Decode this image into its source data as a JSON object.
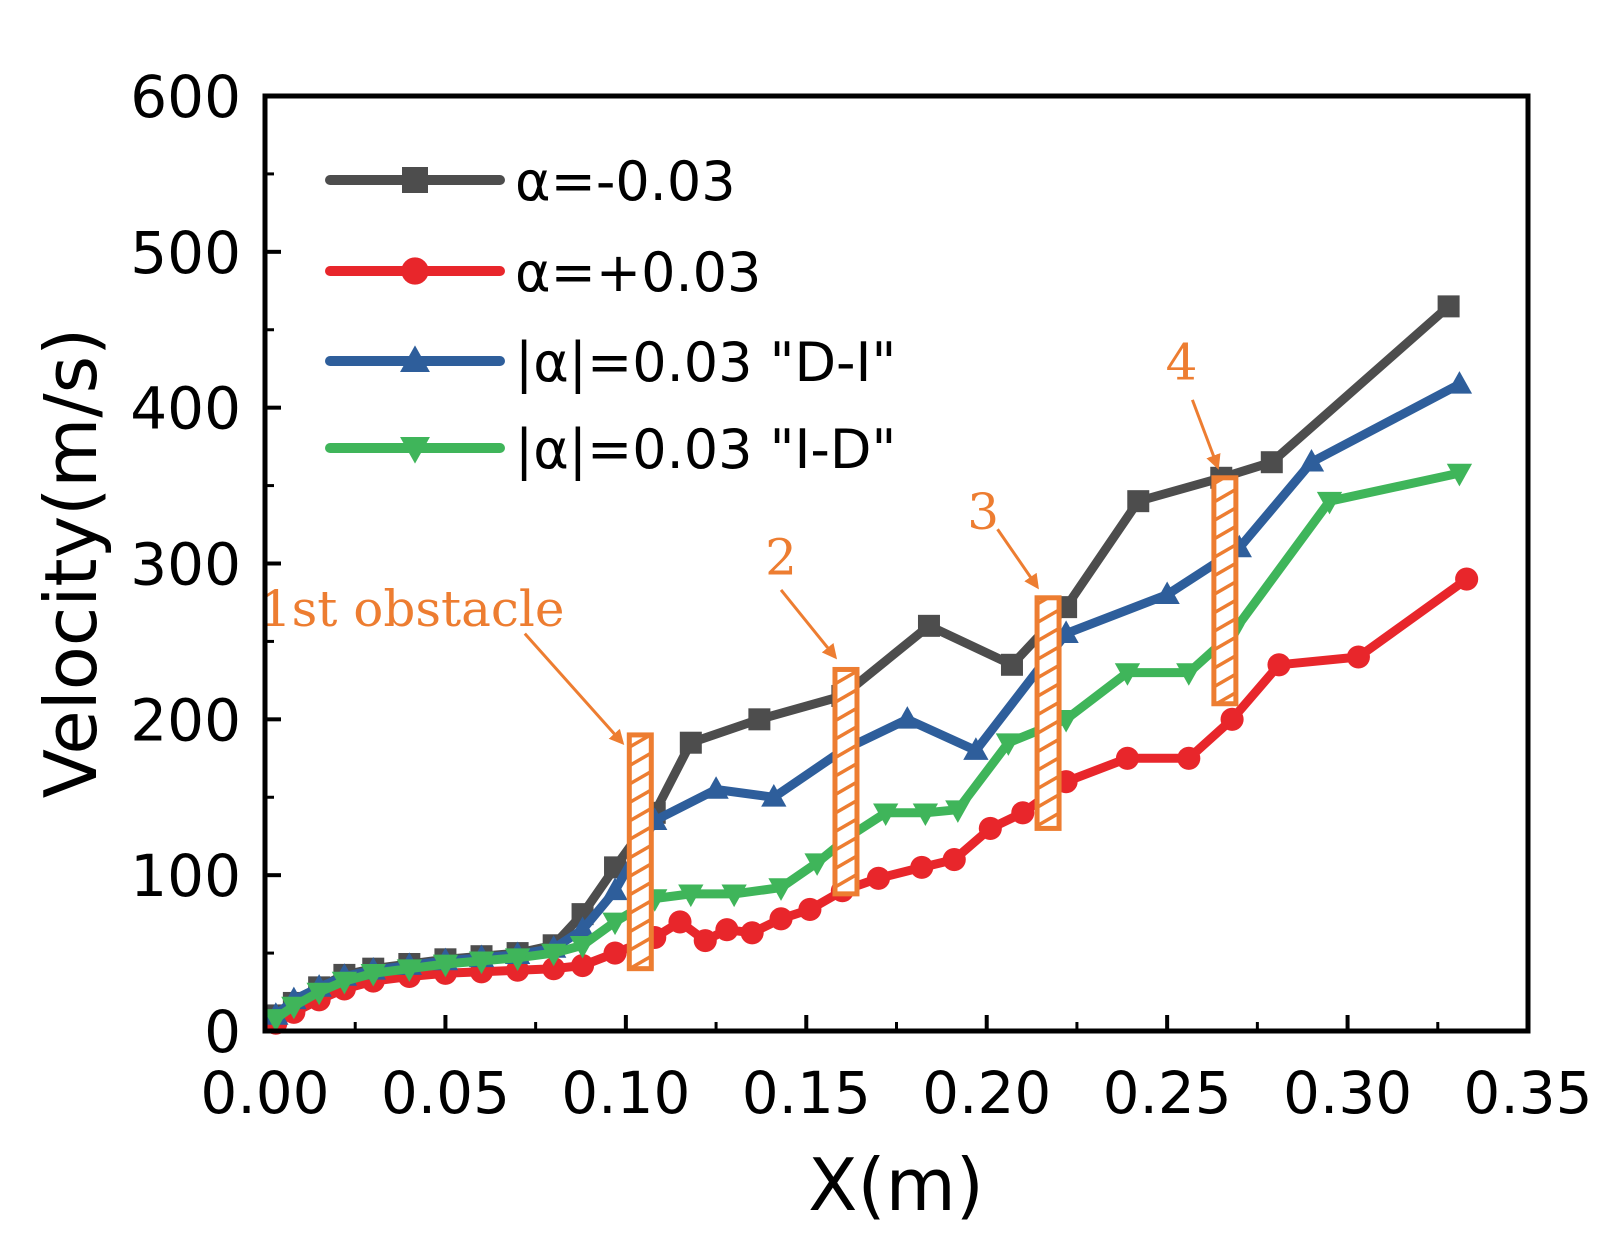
{
  "chart_data": {
    "type": "line",
    "title": "",
    "xlabel": "X(m)",
    "ylabel": "Velocity(m/s)",
    "xlim": [
      0.0,
      0.35
    ],
    "ylim": [
      0,
      600
    ],
    "xticks": [
      0.0,
      0.05,
      0.1,
      0.15,
      0.2,
      0.25,
      0.3,
      0.35
    ],
    "xtick_labels": [
      "0.00",
      "0.05",
      "0.10",
      "0.15",
      "0.20",
      "0.25",
      "0.30",
      "0.35"
    ],
    "yticks": [
      0,
      100,
      200,
      300,
      400,
      500,
      600
    ],
    "ytick_labels": [
      "0",
      "100",
      "200",
      "300",
      "400",
      "500",
      "600"
    ],
    "grid": false,
    "legend_position": "top-left",
    "series": [
      {
        "name": "α=-0.03",
        "color": "#4D4D4D",
        "marker": "square",
        "x": [
          0.003,
          0.008,
          0.015,
          0.022,
          0.03,
          0.04,
          0.05,
          0.06,
          0.07,
          0.08,
          0.088,
          0.097,
          0.108,
          0.118,
          0.137,
          0.16,
          0.184,
          0.207,
          0.222,
          0.242,
          0.265,
          0.279,
          0.328
        ],
        "y": [
          10,
          18,
          28,
          36,
          40,
          43,
          46,
          48,
          50,
          55,
          75,
          105,
          140,
          185,
          200,
          215,
          260,
          235,
          272,
          340,
          355,
          365,
          465
        ]
      },
      {
        "name": "α=+0.03",
        "color": "#E8262B",
        "marker": "circle",
        "x": [
          0.003,
          0.008,
          0.015,
          0.022,
          0.03,
          0.04,
          0.05,
          0.06,
          0.07,
          0.08,
          0.088,
          0.097,
          0.108,
          0.115,
          0.122,
          0.128,
          0.135,
          0.143,
          0.151,
          0.16,
          0.17,
          0.182,
          0.191,
          0.201,
          0.21,
          0.222,
          0.239,
          0.256,
          0.268,
          0.281,
          0.303,
          0.333
        ],
        "y": [
          5,
          12,
          20,
          27,
          32,
          35,
          37,
          38,
          39,
          40,
          42,
          50,
          60,
          70,
          58,
          65,
          63,
          72,
          78,
          90,
          98,
          105,
          110,
          130,
          140,
          160,
          175,
          175,
          200,
          235,
          240,
          290
        ]
      },
      {
        "name": "|α|=0.03 \"D-I\"",
        "color": "#2E5E9B",
        "marker": "triangle-up",
        "x": [
          0.003,
          0.008,
          0.015,
          0.022,
          0.03,
          0.04,
          0.05,
          0.06,
          0.07,
          0.08,
          0.088,
          0.097,
          0.108,
          0.125,
          0.141,
          0.16,
          0.178,
          0.197,
          0.222,
          0.25,
          0.27,
          0.29,
          0.331
        ],
        "y": [
          10,
          20,
          28,
          35,
          39,
          42,
          45,
          47,
          49,
          53,
          65,
          90,
          135,
          155,
          150,
          180,
          200,
          180,
          255,
          280,
          310,
          365,
          415
        ]
      },
      {
        "name": "|α|=0.03 \"I-D\"",
        "color": "#3FB55A",
        "marker": "triangle-down",
        "x": [
          0.003,
          0.008,
          0.015,
          0.022,
          0.03,
          0.04,
          0.05,
          0.06,
          0.07,
          0.08,
          0.088,
          0.097,
          0.108,
          0.118,
          0.13,
          0.143,
          0.153,
          0.162,
          0.172,
          0.183,
          0.192,
          0.206,
          0.222,
          0.239,
          0.256,
          0.268,
          0.295,
          0.331
        ],
        "y": [
          8,
          16,
          25,
          32,
          37,
          40,
          43,
          45,
          47,
          50,
          55,
          70,
          85,
          88,
          88,
          92,
          108,
          125,
          140,
          140,
          142,
          185,
          200,
          230,
          230,
          255,
          340,
          358
        ]
      }
    ],
    "annotations": [
      {
        "label": "1st obstacle",
        "x": 0.104
      },
      {
        "label": "2",
        "x": 0.161
      },
      {
        "label": "3",
        "x": 0.217
      },
      {
        "label": "4",
        "x": 0.266
      }
    ]
  }
}
